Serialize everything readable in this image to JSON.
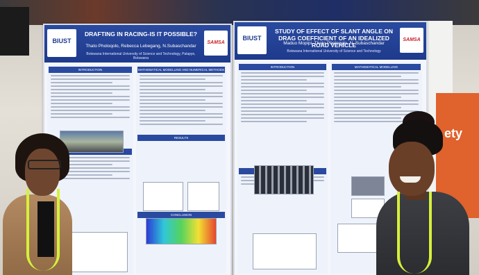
{
  "poster_left": {
    "title": "DRAFTING IN RACING-IS IT POSSIBLE?",
    "authors": "Thato Pholoqolo, Rebecca Lebegang, N.Subaschandar",
    "affiliation": "Botswana International University of Science and Technology, Palapye, Botswana",
    "logo": "BIUST",
    "sponsor": "SAMSA",
    "sections": [
      "INTRODUCTION",
      "MATHEMATICAL MODELLING AND NUMERICAL METHODS",
      "DESCRIPTION OF THE PROJECT",
      "RESULTS",
      "CONCLUSION"
    ]
  },
  "poster_right": {
    "title": "STUDY OF EFFECT OF SLANT ANGLE ON DRAG COEFFICIENT OF AN IDEALIZED ROAD VEHICLE",
    "authors": "Maduo Mopipi, Thato Pholoqolo, N. Subaschandar",
    "affiliation": "Botswana International University of Science and Technology",
    "logo": "BIUST",
    "sponsor": "SAMSA",
    "sections": [
      "INTRODUCTION",
      "MATHEMATICAL MODELLING",
      "DESCRIPTION OF THE PROJECT"
    ]
  },
  "background_sign": "ety",
  "colors": {
    "poster_header": "#1e3a8c",
    "lanyard": "#d7f03a",
    "banner": "#e0622c"
  }
}
